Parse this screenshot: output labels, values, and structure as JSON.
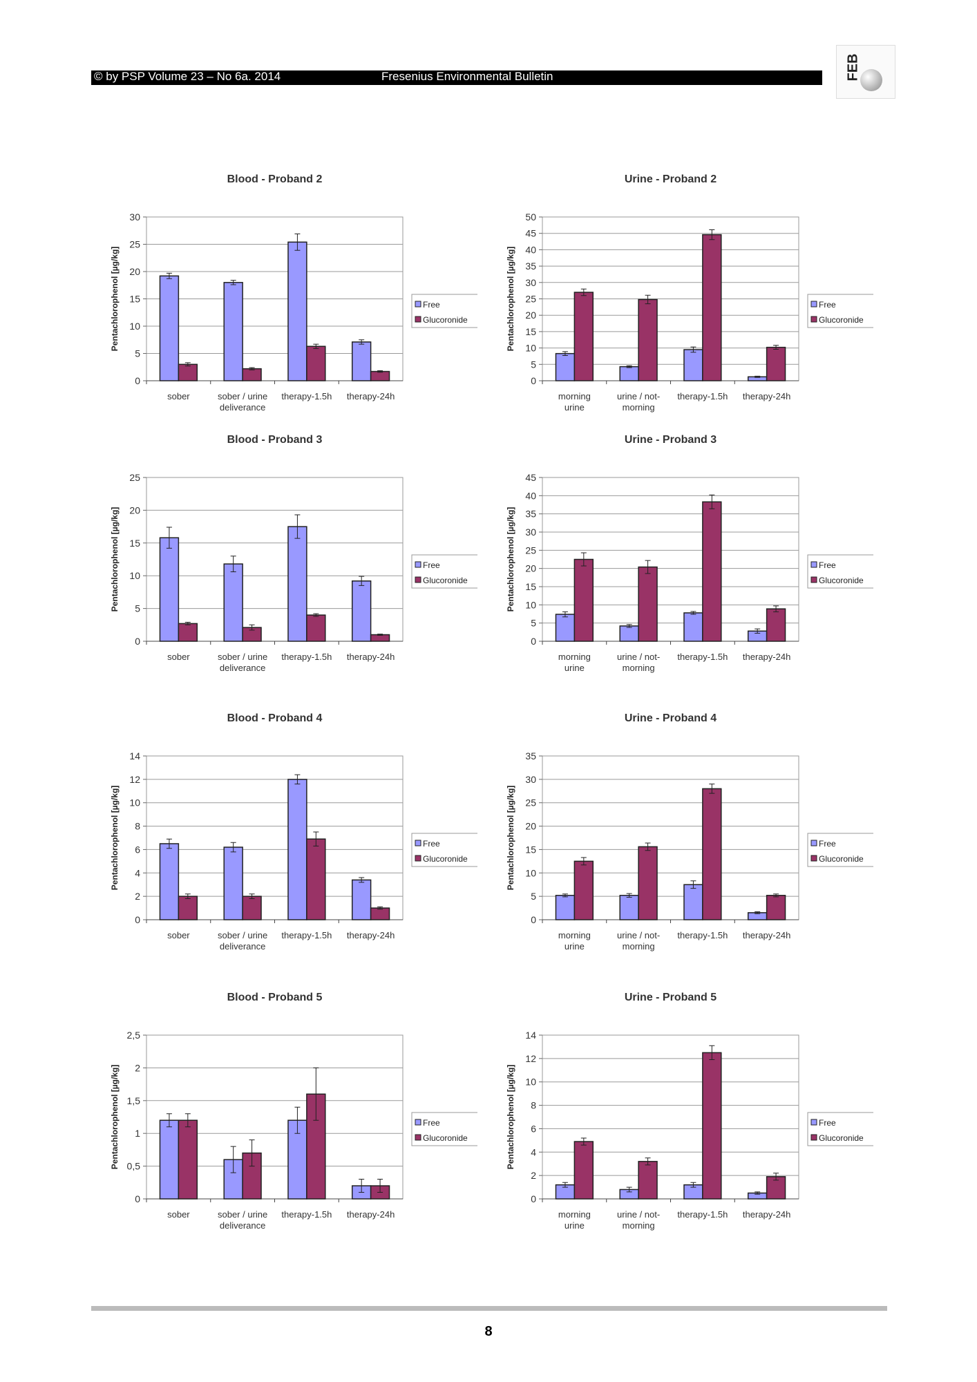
{
  "header": {
    "left": "© by PSP Volume 23 – No 6a. 2014",
    "center": "Fresenius Environmental Bulletin",
    "logo": "FEB"
  },
  "page_number": "8",
  "colors": {
    "free": "#9999ff",
    "glucoronide": "#993366"
  },
  "chart_data": [
    {
      "type": "bar",
      "title": "Blood - Proband 2",
      "ylabel": "Pentachlorophenol [µg/kg]",
      "ylim": [
        0,
        30
      ],
      "ticks": [
        "0",
        "5",
        "10",
        "15",
        "20",
        "25",
        "30"
      ],
      "categories": [
        [
          "sober"
        ],
        [
          "sober / urine",
          "deliverance"
        ],
        [
          "therapy-1.5h"
        ],
        [
          "therapy-24h"
        ]
      ],
      "legend": "right",
      "series": [
        {
          "name": "Free",
          "values": [
            19.2,
            18.0,
            25.4,
            7.1
          ],
          "errors": [
            0.5,
            0.4,
            1.5,
            0.4
          ]
        },
        {
          "name": "Glucoronide",
          "values": [
            3.0,
            2.2,
            6.3,
            1.7
          ],
          "errors": [
            0.3,
            0.2,
            0.4,
            0.15
          ]
        }
      ]
    },
    {
      "type": "bar",
      "title": "Urine - Proband 2",
      "ylabel": "Pentachlorophenol [µg/kg]",
      "ylim": [
        0,
        50
      ],
      "ticks": [
        "0",
        "5",
        "10",
        "15",
        "20",
        "25",
        "30",
        "35",
        "40",
        "45",
        "50"
      ],
      "categories": [
        [
          "morning",
          "urine"
        ],
        [
          "urine / not-",
          "morning"
        ],
        [
          "therapy-1.5h"
        ],
        [
          "therapy-24h"
        ]
      ],
      "legend": "right",
      "series": [
        {
          "name": "Free",
          "values": [
            8.3,
            4.3,
            9.5,
            1.2
          ],
          "errors": [
            0.6,
            0.3,
            0.8,
            0.2
          ]
        },
        {
          "name": "Glucoronide",
          "values": [
            27.0,
            24.8,
            44.6,
            10.2
          ],
          "errors": [
            1.0,
            1.3,
            1.5,
            0.6
          ]
        }
      ]
    },
    {
      "type": "bar",
      "title": "Blood - Proband 3",
      "ylabel": "Pentachlorophenol [µg/kg]",
      "ylim": [
        0,
        25
      ],
      "ticks": [
        "0",
        "5",
        "10",
        "15",
        "20",
        "25"
      ],
      "categories": [
        [
          "sober"
        ],
        [
          "sober / urine",
          "deliverance"
        ],
        [
          "therapy-1.5h"
        ],
        [
          "therapy-24h"
        ]
      ],
      "legend": "right",
      "series": [
        {
          "name": "Free",
          "values": [
            15.8,
            11.8,
            17.5,
            9.2
          ],
          "errors": [
            1.6,
            1.2,
            1.8,
            0.7
          ]
        },
        {
          "name": "Glucoronide",
          "values": [
            2.7,
            2.1,
            4.0,
            1.0
          ],
          "errors": [
            0.2,
            0.4,
            0.2,
            0.1
          ]
        }
      ]
    },
    {
      "type": "bar",
      "title": "Urine - Proband 3",
      "ylabel": "Pentachlorophenol [µg/kg]",
      "ylim": [
        0,
        45
      ],
      "ticks": [
        "0",
        "5",
        "10",
        "15",
        "20",
        "25",
        "30",
        "35",
        "40",
        "45"
      ],
      "categories": [
        [
          "morning",
          "urine"
        ],
        [
          "urine / not-",
          "morning"
        ],
        [
          "therapy-1.5h"
        ],
        [
          "therapy-24h"
        ]
      ],
      "legend": "right",
      "series": [
        {
          "name": "Free",
          "values": [
            7.4,
            4.2,
            7.8,
            2.8
          ],
          "errors": [
            0.7,
            0.4,
            0.4,
            0.6
          ]
        },
        {
          "name": "Glucoronide",
          "values": [
            22.5,
            20.4,
            38.3,
            8.9
          ],
          "errors": [
            1.8,
            1.8,
            1.9,
            0.8
          ]
        }
      ]
    },
    {
      "type": "bar",
      "title": "Blood - Proband 4",
      "ylabel": "Pentachlorophenol [µg/kg]",
      "ylim": [
        0,
        14
      ],
      "ticks": [
        "0",
        "2",
        "4",
        "6",
        "8",
        "10",
        "12",
        "14"
      ],
      "categories": [
        [
          "sober"
        ],
        [
          "sober / urine",
          "deliverance"
        ],
        [
          "therapy-1.5h"
        ],
        [
          "therapy-24h"
        ]
      ],
      "legend": "right",
      "series": [
        {
          "name": "Free",
          "values": [
            6.5,
            6.2,
            12.0,
            3.4
          ],
          "errors": [
            0.4,
            0.4,
            0.4,
            0.2
          ]
        },
        {
          "name": "Glucoronide",
          "values": [
            2.0,
            2.0,
            6.9,
            1.0
          ],
          "errors": [
            0.2,
            0.2,
            0.6,
            0.1
          ]
        }
      ]
    },
    {
      "type": "bar",
      "title": "Urine - Proband 4",
      "ylabel": "Pentachlorophenol [µg/kg]",
      "ylim": [
        0,
        35
      ],
      "ticks": [
        "0",
        "5",
        "10",
        "15",
        "20",
        "25",
        "30",
        "35"
      ],
      "categories": [
        [
          "morning",
          "urine"
        ],
        [
          "urine / not-",
          "morning"
        ],
        [
          "therapy-1.5h"
        ],
        [
          "therapy-24h"
        ]
      ],
      "legend": "right",
      "series": [
        {
          "name": "Free",
          "values": [
            5.2,
            5.2,
            7.5,
            1.5
          ],
          "errors": [
            0.3,
            0.4,
            0.8,
            0.2
          ]
        },
        {
          "name": "Glucoronide",
          "values": [
            12.5,
            15.6,
            28.0,
            5.2
          ],
          "errors": [
            0.8,
            0.8,
            1.0,
            0.3
          ]
        }
      ]
    },
    {
      "type": "bar",
      "title": "Blood - Proband 5",
      "ylabel": "Pentachlorophenol [µg/kg]",
      "ylim": [
        0,
        2.5
      ],
      "ticks": [
        "0",
        "0,5",
        "1",
        "1,5",
        "2",
        "2,5"
      ],
      "categories": [
        [
          "sober"
        ],
        [
          "sober / urine",
          "deliverance"
        ],
        [
          "therapy-1.5h"
        ],
        [
          "therapy-24h"
        ]
      ],
      "legend": "right",
      "series": [
        {
          "name": "Free",
          "values": [
            1.2,
            0.6,
            1.2,
            0.2
          ],
          "errors": [
            0.1,
            0.2,
            0.2,
            0.1
          ]
        },
        {
          "name": "Glucoronide",
          "values": [
            1.2,
            0.7,
            1.6,
            0.2
          ],
          "errors": [
            0.1,
            0.2,
            0.4,
            0.1
          ]
        }
      ]
    },
    {
      "type": "bar",
      "title": "Urine - Proband 5",
      "ylabel": "Pentachlorophenol [µg/kg]",
      "ylim": [
        0,
        14
      ],
      "ticks": [
        "0",
        "2",
        "4",
        "6",
        "8",
        "10",
        "12",
        "14"
      ],
      "categories": [
        [
          "morning",
          "urine"
        ],
        [
          "urine / not-",
          "morning"
        ],
        [
          "therapy-1.5h"
        ],
        [
          "therapy-24h"
        ]
      ],
      "legend": "right",
      "series": [
        {
          "name": "Free",
          "values": [
            1.2,
            0.8,
            1.2,
            0.5
          ],
          "errors": [
            0.2,
            0.2,
            0.2,
            0.1
          ]
        },
        {
          "name": "Glucoronide",
          "values": [
            4.9,
            3.2,
            12.5,
            1.9
          ],
          "errors": [
            0.3,
            0.3,
            0.6,
            0.3
          ]
        }
      ]
    }
  ]
}
